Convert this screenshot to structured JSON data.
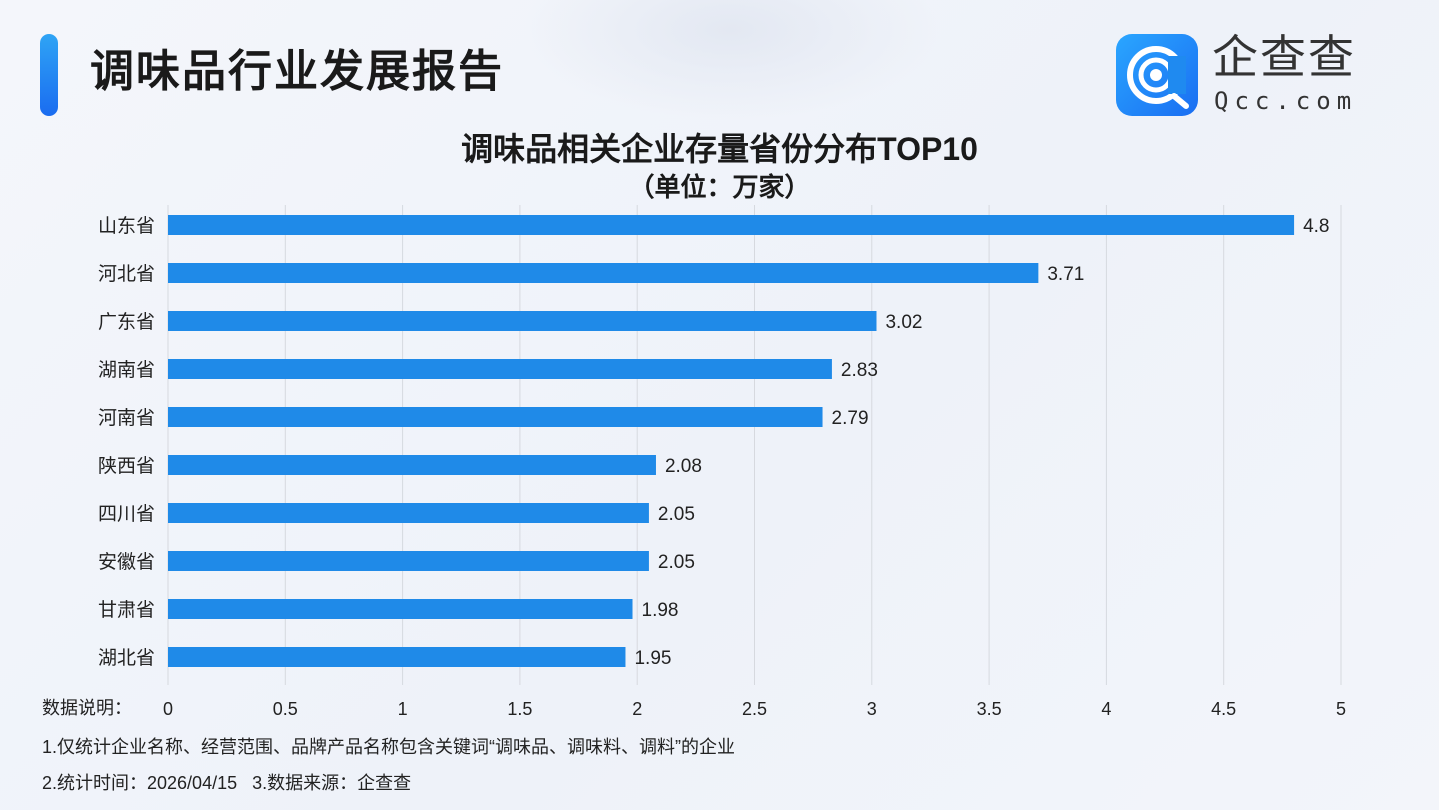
{
  "header": {
    "title": "调味品行业发展报告",
    "logo_cn": "企查查",
    "logo_en": "Qcc.com"
  },
  "chart_data": {
    "type": "bar",
    "orientation": "horizontal",
    "title": "调味品相关企业存量省份分布TOP10",
    "subtitle": "（单位：万家）",
    "categories": [
      "山东省",
      "河北省",
      "广东省",
      "湖南省",
      "河南省",
      "陕西省",
      "四川省",
      "安徽省",
      "甘肃省",
      "湖北省"
    ],
    "values": [
      4.8,
      3.71,
      3.02,
      2.83,
      2.79,
      2.08,
      2.05,
      2.05,
      1.98,
      1.95
    ],
    "value_labels": [
      "4.8",
      "3.71",
      "3.02",
      "2.83",
      "2.79",
      "2.08",
      "2.05",
      "2.05",
      "1.98",
      "1.95"
    ],
    "xlim": [
      0,
      5
    ],
    "xticks": [
      "0",
      "0.5",
      "1",
      "1.5",
      "2",
      "2.5",
      "3",
      "3.5",
      "4",
      "4.5",
      "5"
    ],
    "grid": true,
    "bar_color": "#1f8ae8"
  },
  "notes": {
    "label": "数据说明：",
    "line1": "1.仅统计企业名称、经营范围、品牌产品名称包含关键词“调味品、调味料、调料”的企业",
    "line2": "2.统计时间：2026/04/15   3.数据来源：企查查"
  }
}
